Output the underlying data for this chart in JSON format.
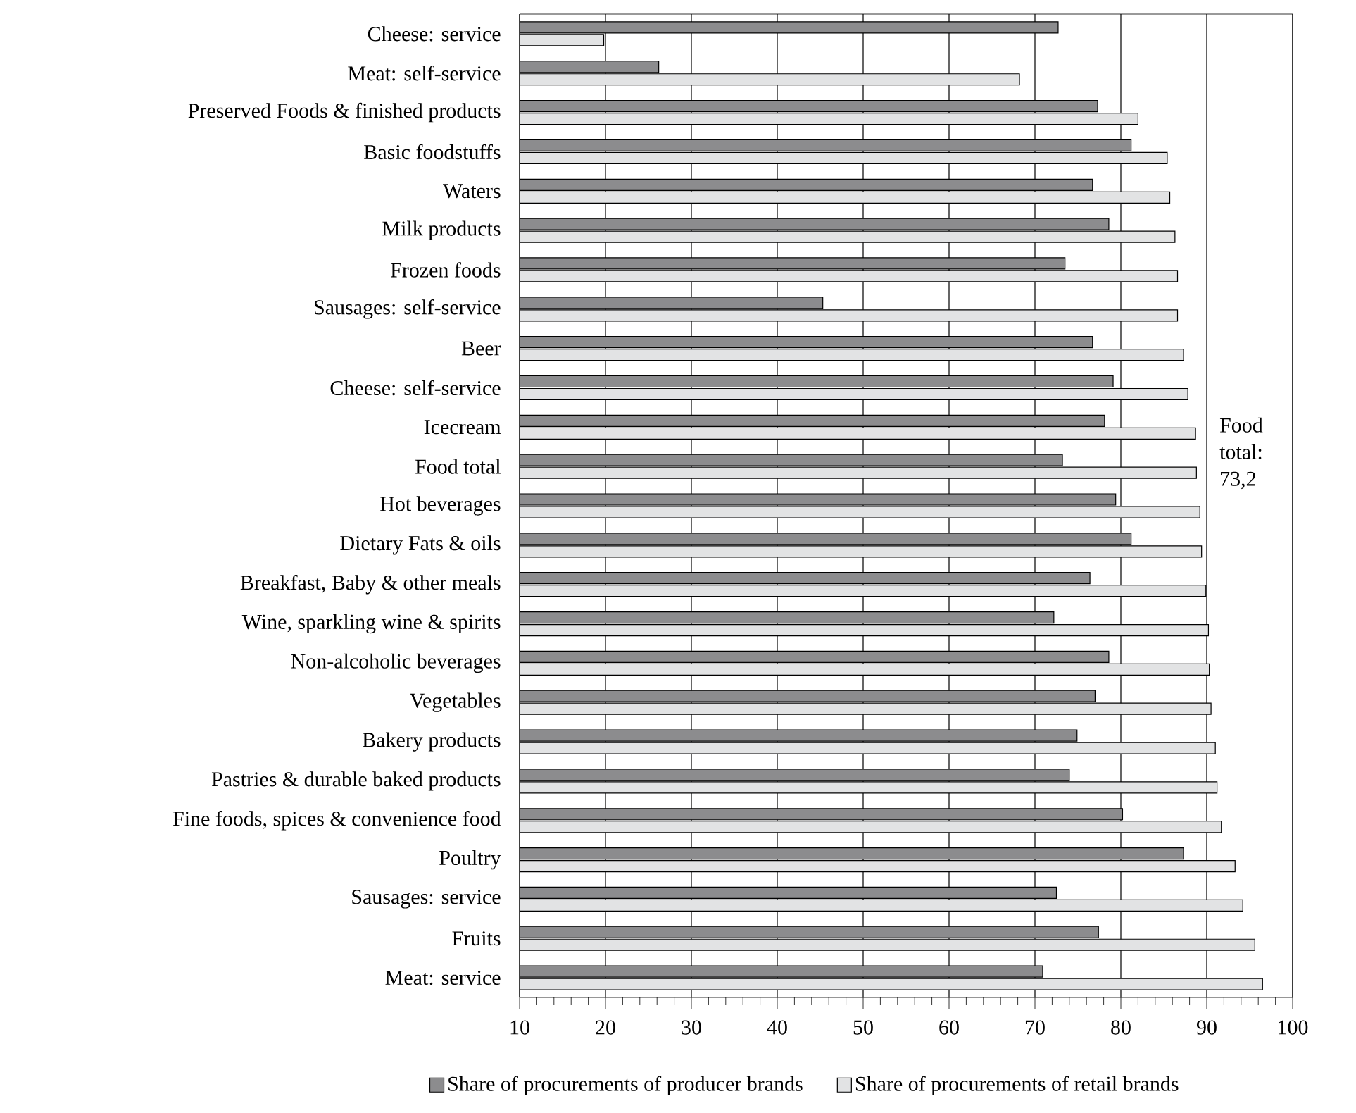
{
  "chart_data": {
    "type": "bar",
    "orientation": "horizontal",
    "categories": [
      "Cheese: service",
      "Meat: self-service",
      "Preserved Foods & finished products",
      "Basic foodstuffs",
      "Waters",
      "Milk products",
      "Frozen foods",
      "Sausages: self-service",
      "Beer",
      "Cheese: self-service",
      "Icecream",
      "Food total",
      "Hot beverages",
      "Dietary Fats & oils",
      "Breakfast, Baby & other meals",
      "Wine, sparkling wine & spirits",
      "Non-alcoholic beverages",
      "Vegetables",
      "Bakery products",
      "Pastries & durable baked products",
      "Fine foods, spices & convenience food",
      "Poultry",
      "Sausages: service",
      "Fruits",
      "Meat: service"
    ],
    "series": [
      {
        "name": "Share of procurements of producer brands",
        "color": "#8c8c8e",
        "values": [
          72.7,
          26.2,
          77.3,
          81.2,
          76.7,
          78.6,
          73.5,
          45.3,
          76.7,
          79.1,
          78.1,
          73.2,
          79.4,
          81.2,
          76.4,
          72.2,
          78.6,
          77.0,
          74.9,
          74.0,
          80.2,
          87.3,
          72.5,
          77.4,
          70.9
        ]
      },
      {
        "name": "Share of procurements of retail brands",
        "color": "#e2e3e4",
        "values": [
          19.8,
          68.2,
          82.0,
          85.4,
          85.7,
          86.3,
          86.6,
          86.6,
          87.3,
          87.8,
          88.7,
          88.8,
          89.2,
          89.4,
          89.9,
          90.2,
          90.3,
          90.5,
          91.0,
          91.2,
          91.7,
          93.3,
          94.2,
          95.6,
          96.5
        ]
      }
    ],
    "xlim": [
      10,
      100
    ],
    "xticks": [
      10,
      20,
      30,
      40,
      50,
      60,
      70,
      80,
      90,
      100
    ],
    "grid": "x",
    "legend": "bottom",
    "annotations": [
      "Food total: 73,2"
    ]
  }
}
